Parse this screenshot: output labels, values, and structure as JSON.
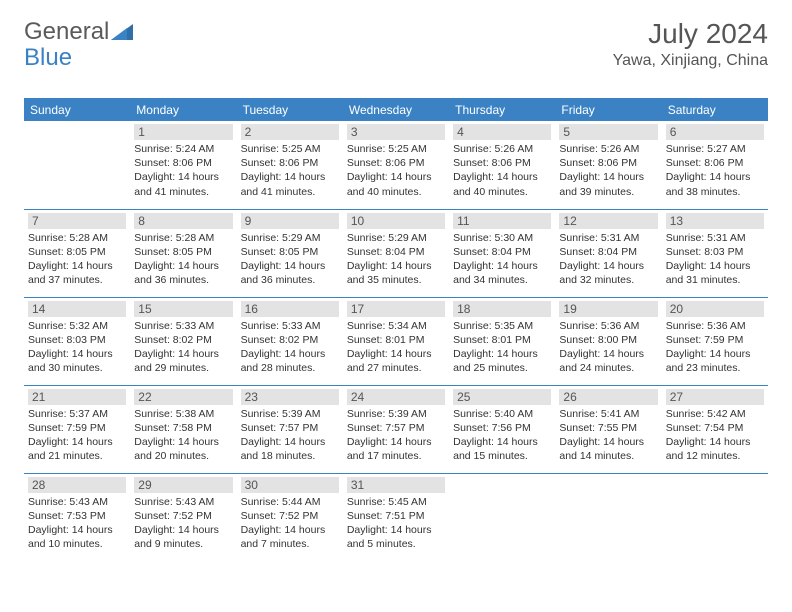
{
  "logo": {
    "text_general": "General",
    "text_blue": "Blue"
  },
  "title": "July 2024",
  "location": "Yawa, Xinjiang, China",
  "colors": {
    "header_bg": "#3b82c4",
    "header_text": "#ffffff",
    "daynum_bg": "#e4e3e3",
    "border": "#3b82c4",
    "text": "#333333"
  },
  "weekdays": [
    "Sunday",
    "Monday",
    "Tuesday",
    "Wednesday",
    "Thursday",
    "Friday",
    "Saturday"
  ],
  "weeks": [
    [
      null,
      {
        "n": "1",
        "sr": "Sunrise: 5:24 AM",
        "ss": "Sunset: 8:06 PM",
        "dl": "Daylight: 14 hours and 41 minutes."
      },
      {
        "n": "2",
        "sr": "Sunrise: 5:25 AM",
        "ss": "Sunset: 8:06 PM",
        "dl": "Daylight: 14 hours and 41 minutes."
      },
      {
        "n": "3",
        "sr": "Sunrise: 5:25 AM",
        "ss": "Sunset: 8:06 PM",
        "dl": "Daylight: 14 hours and 40 minutes."
      },
      {
        "n": "4",
        "sr": "Sunrise: 5:26 AM",
        "ss": "Sunset: 8:06 PM",
        "dl": "Daylight: 14 hours and 40 minutes."
      },
      {
        "n": "5",
        "sr": "Sunrise: 5:26 AM",
        "ss": "Sunset: 8:06 PM",
        "dl": "Daylight: 14 hours and 39 minutes."
      },
      {
        "n": "6",
        "sr": "Sunrise: 5:27 AM",
        "ss": "Sunset: 8:06 PM",
        "dl": "Daylight: 14 hours and 38 minutes."
      }
    ],
    [
      {
        "n": "7",
        "sr": "Sunrise: 5:28 AM",
        "ss": "Sunset: 8:05 PM",
        "dl": "Daylight: 14 hours and 37 minutes."
      },
      {
        "n": "8",
        "sr": "Sunrise: 5:28 AM",
        "ss": "Sunset: 8:05 PM",
        "dl": "Daylight: 14 hours and 36 minutes."
      },
      {
        "n": "9",
        "sr": "Sunrise: 5:29 AM",
        "ss": "Sunset: 8:05 PM",
        "dl": "Daylight: 14 hours and 36 minutes."
      },
      {
        "n": "10",
        "sr": "Sunrise: 5:29 AM",
        "ss": "Sunset: 8:04 PM",
        "dl": "Daylight: 14 hours and 35 minutes."
      },
      {
        "n": "11",
        "sr": "Sunrise: 5:30 AM",
        "ss": "Sunset: 8:04 PM",
        "dl": "Daylight: 14 hours and 34 minutes."
      },
      {
        "n": "12",
        "sr": "Sunrise: 5:31 AM",
        "ss": "Sunset: 8:04 PM",
        "dl": "Daylight: 14 hours and 32 minutes."
      },
      {
        "n": "13",
        "sr": "Sunrise: 5:31 AM",
        "ss": "Sunset: 8:03 PM",
        "dl": "Daylight: 14 hours and 31 minutes."
      }
    ],
    [
      {
        "n": "14",
        "sr": "Sunrise: 5:32 AM",
        "ss": "Sunset: 8:03 PM",
        "dl": "Daylight: 14 hours and 30 minutes."
      },
      {
        "n": "15",
        "sr": "Sunrise: 5:33 AM",
        "ss": "Sunset: 8:02 PM",
        "dl": "Daylight: 14 hours and 29 minutes."
      },
      {
        "n": "16",
        "sr": "Sunrise: 5:33 AM",
        "ss": "Sunset: 8:02 PM",
        "dl": "Daylight: 14 hours and 28 minutes."
      },
      {
        "n": "17",
        "sr": "Sunrise: 5:34 AM",
        "ss": "Sunset: 8:01 PM",
        "dl": "Daylight: 14 hours and 27 minutes."
      },
      {
        "n": "18",
        "sr": "Sunrise: 5:35 AM",
        "ss": "Sunset: 8:01 PM",
        "dl": "Daylight: 14 hours and 25 minutes."
      },
      {
        "n": "19",
        "sr": "Sunrise: 5:36 AM",
        "ss": "Sunset: 8:00 PM",
        "dl": "Daylight: 14 hours and 24 minutes."
      },
      {
        "n": "20",
        "sr": "Sunrise: 5:36 AM",
        "ss": "Sunset: 7:59 PM",
        "dl": "Daylight: 14 hours and 23 minutes."
      }
    ],
    [
      {
        "n": "21",
        "sr": "Sunrise: 5:37 AM",
        "ss": "Sunset: 7:59 PM",
        "dl": "Daylight: 14 hours and 21 minutes."
      },
      {
        "n": "22",
        "sr": "Sunrise: 5:38 AM",
        "ss": "Sunset: 7:58 PM",
        "dl": "Daylight: 14 hours and 20 minutes."
      },
      {
        "n": "23",
        "sr": "Sunrise: 5:39 AM",
        "ss": "Sunset: 7:57 PM",
        "dl": "Daylight: 14 hours and 18 minutes."
      },
      {
        "n": "24",
        "sr": "Sunrise: 5:39 AM",
        "ss": "Sunset: 7:57 PM",
        "dl": "Daylight: 14 hours and 17 minutes."
      },
      {
        "n": "25",
        "sr": "Sunrise: 5:40 AM",
        "ss": "Sunset: 7:56 PM",
        "dl": "Daylight: 14 hours and 15 minutes."
      },
      {
        "n": "26",
        "sr": "Sunrise: 5:41 AM",
        "ss": "Sunset: 7:55 PM",
        "dl": "Daylight: 14 hours and 14 minutes."
      },
      {
        "n": "27",
        "sr": "Sunrise: 5:42 AM",
        "ss": "Sunset: 7:54 PM",
        "dl": "Daylight: 14 hours and 12 minutes."
      }
    ],
    [
      {
        "n": "28",
        "sr": "Sunrise: 5:43 AM",
        "ss": "Sunset: 7:53 PM",
        "dl": "Daylight: 14 hours and 10 minutes."
      },
      {
        "n": "29",
        "sr": "Sunrise: 5:43 AM",
        "ss": "Sunset: 7:52 PM",
        "dl": "Daylight: 14 hours and 9 minutes."
      },
      {
        "n": "30",
        "sr": "Sunrise: 5:44 AM",
        "ss": "Sunset: 7:52 PM",
        "dl": "Daylight: 14 hours and 7 minutes."
      },
      {
        "n": "31",
        "sr": "Sunrise: 5:45 AM",
        "ss": "Sunset: 7:51 PM",
        "dl": "Daylight: 14 hours and 5 minutes."
      },
      null,
      null,
      null
    ]
  ]
}
